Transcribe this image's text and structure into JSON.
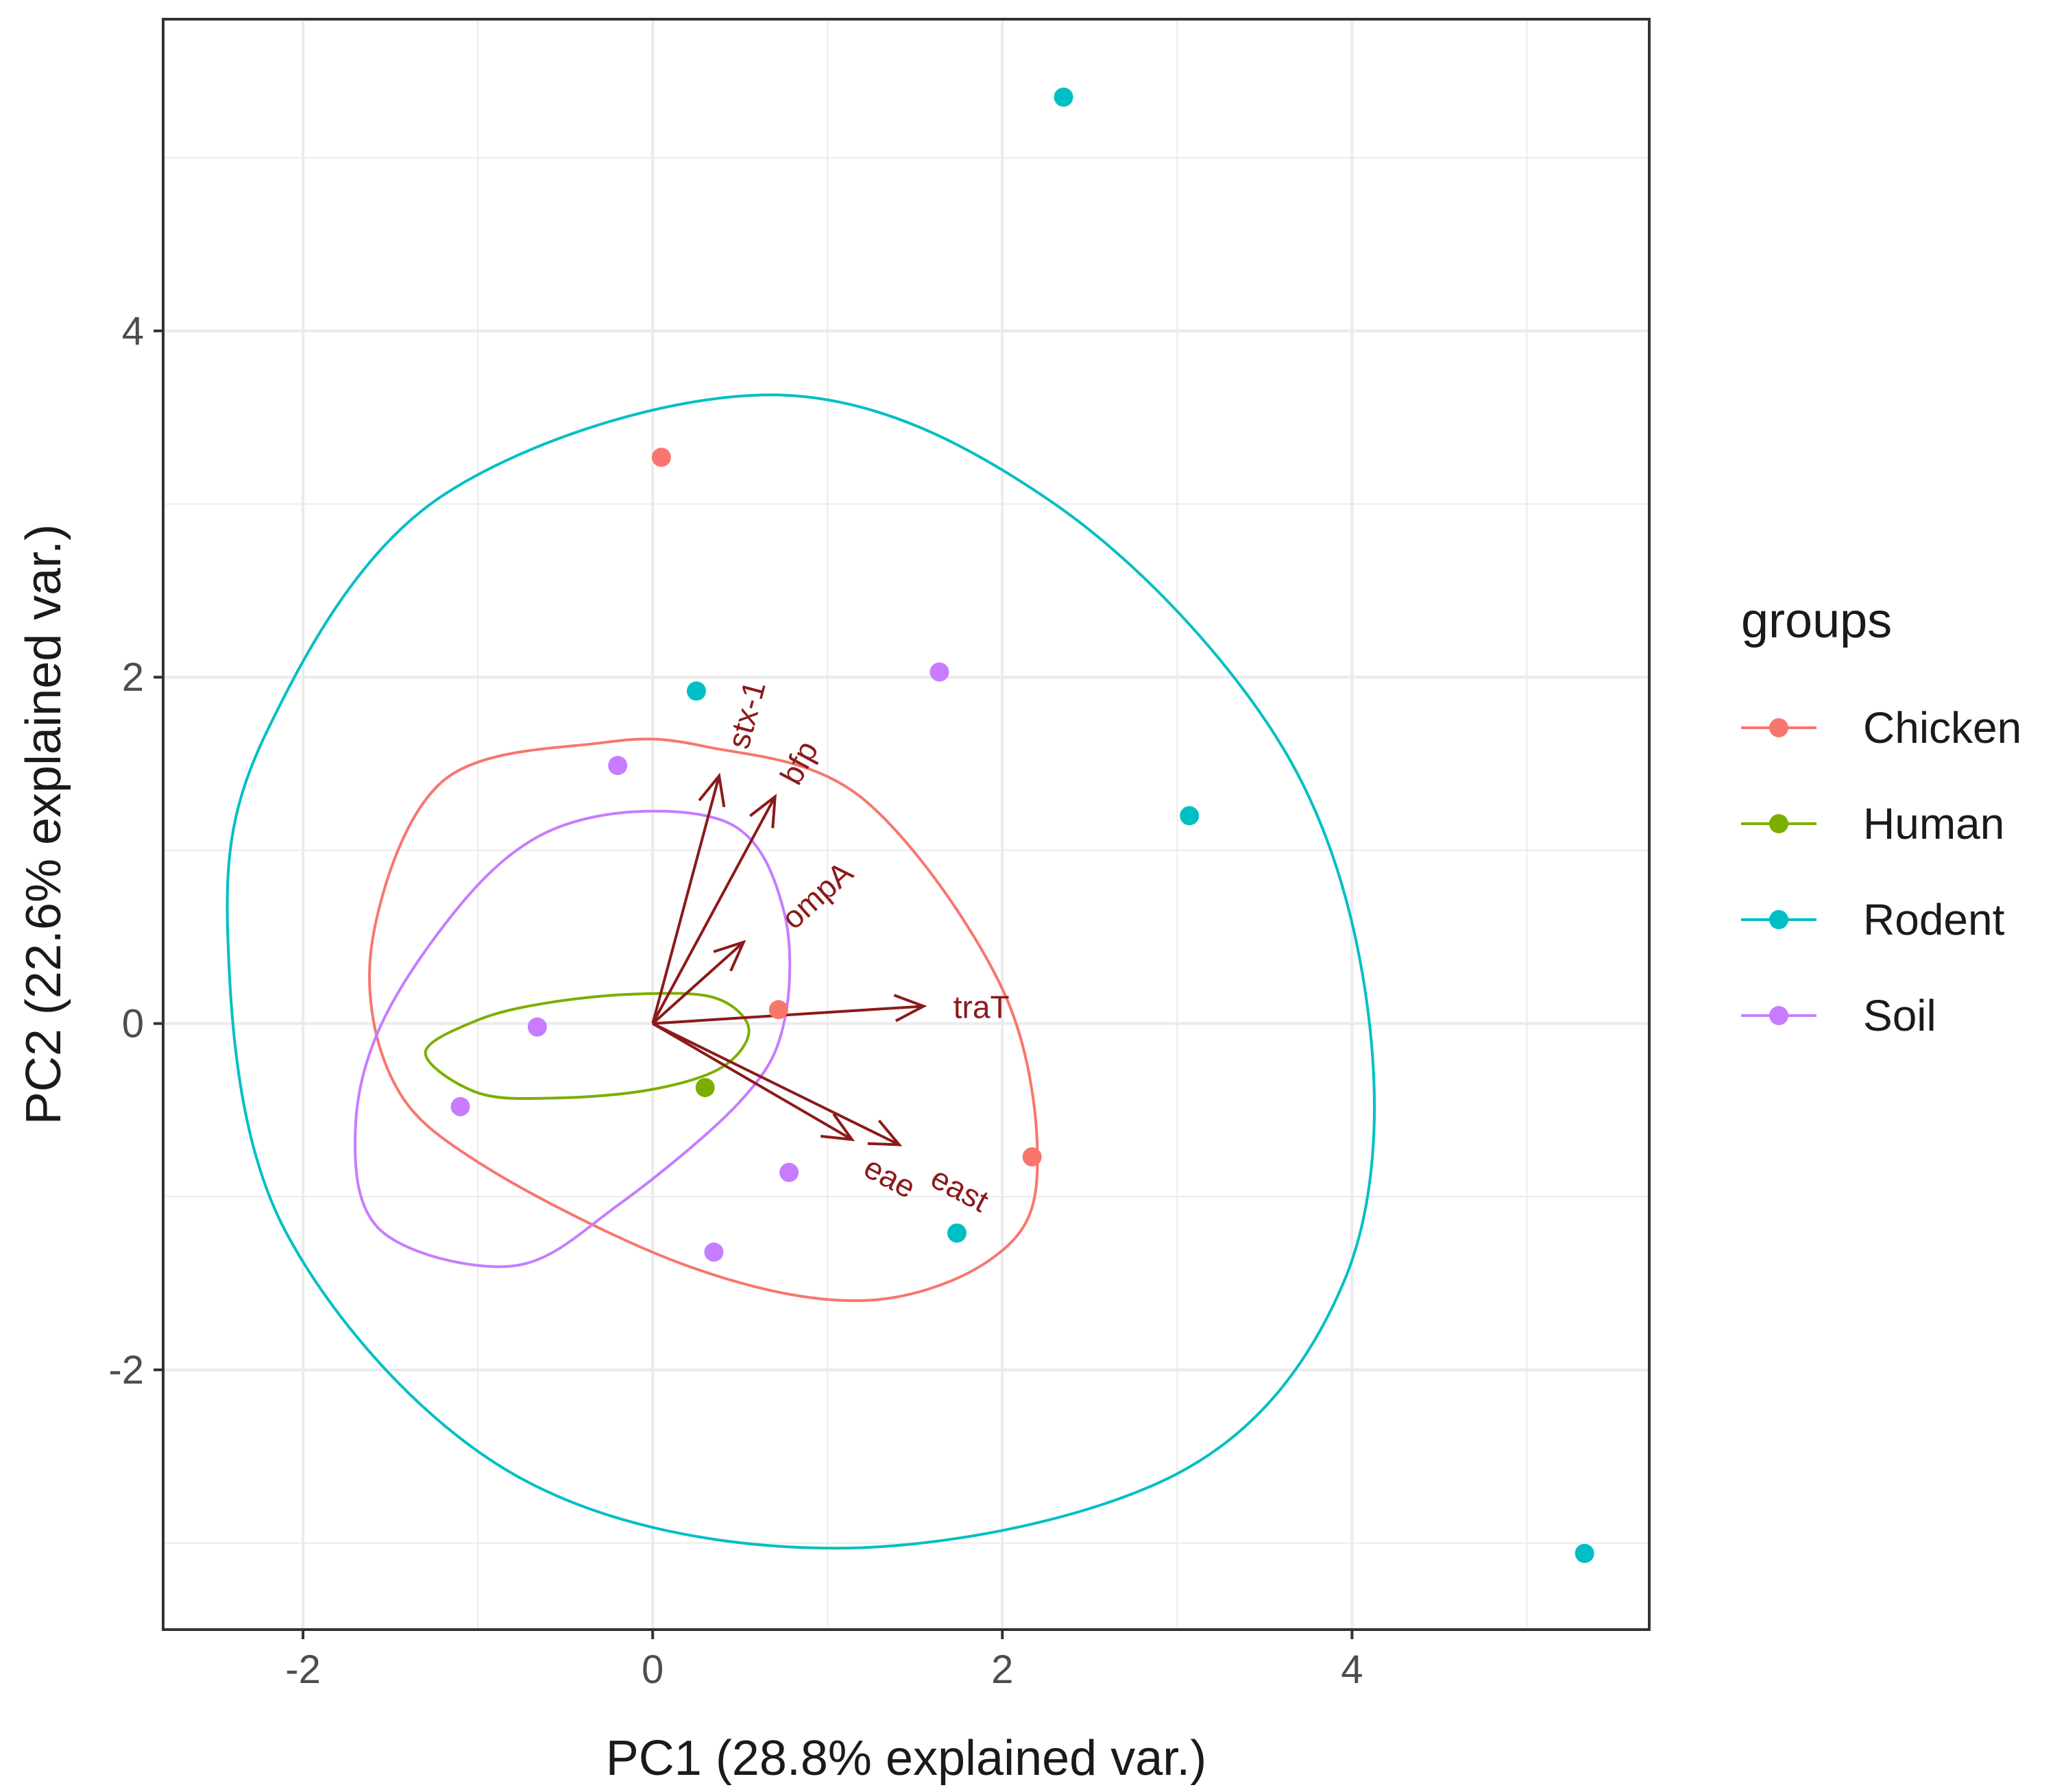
{
  "chart_data": {
    "type": "scatter",
    "subtype": "pca-biplot",
    "xlabel": "PC1 (28.8% explained var.)",
    "ylabel": "PC2 (22.6% explained var.)",
    "xlim": [
      -2.8,
      5.7
    ],
    "ylim": [
      -3.5,
      5.8
    ],
    "x_ticks": [
      -2,
      0,
      2,
      4
    ],
    "y_ticks": [
      -2,
      0,
      2,
      4
    ],
    "x_tick_labels": [
      "-2",
      "0",
      "2",
      "4"
    ],
    "y_tick_labels": [
      "-2",
      "0",
      "2",
      "4"
    ],
    "grid": true,
    "legend": {
      "title": "groups",
      "position": "right"
    },
    "series": [
      {
        "name": "Chicken",
        "color": "#F8766D",
        "points": [
          [
            0.05,
            3.27
          ],
          [
            0.72,
            0.08
          ],
          [
            2.17,
            -0.77
          ]
        ]
      },
      {
        "name": "Human",
        "color": "#7CAE00",
        "points": [
          [
            0.3,
            -0.37
          ]
        ]
      },
      {
        "name": "Rodent",
        "color": "#00BFC4",
        "points": [
          [
            2.35,
            5.35
          ],
          [
            0.25,
            1.92
          ],
          [
            3.07,
            1.2
          ],
          [
            1.74,
            -1.21
          ],
          [
            5.33,
            -3.06
          ]
        ]
      },
      {
        "name": "Soil",
        "color": "#C77CFF",
        "points": [
          [
            1.64,
            2.03
          ],
          [
            -0.2,
            1.49
          ],
          [
            -0.66,
            -0.02
          ],
          [
            -1.1,
            -0.48
          ],
          [
            0.78,
            -0.86
          ],
          [
            0.35,
            -1.32
          ]
        ]
      }
    ],
    "ellipses": [
      {
        "series": "Chicken",
        "color": "#F8766D",
        "path": [
          [
            -1.6,
            0.5
          ],
          [
            -1.2,
            1.4
          ],
          [
            -0.3,
            1.62
          ],
          [
            0.3,
            1.6
          ],
          [
            1.2,
            1.3
          ],
          [
            2.0,
            0.2
          ],
          [
            2.2,
            -0.85
          ],
          [
            1.95,
            -1.35
          ],
          [
            1.2,
            -1.6
          ],
          [
            0.2,
            -1.4
          ],
          [
            -1.0,
            -0.8
          ],
          [
            -1.5,
            -0.3
          ],
          [
            -1.6,
            0.5
          ]
        ]
      },
      {
        "series": "Human",
        "color": "#7CAE00",
        "path": [
          [
            -1.3,
            -0.17
          ],
          [
            -1.0,
            0.02
          ],
          [
            -0.6,
            0.12
          ],
          [
            -0.1,
            0.17
          ],
          [
            0.35,
            0.15
          ],
          [
            0.55,
            -0.03
          ],
          [
            0.4,
            -0.25
          ],
          [
            0.0,
            -0.38
          ],
          [
            -0.55,
            -0.43
          ],
          [
            -1.0,
            -0.4
          ],
          [
            -1.3,
            -0.17
          ]
        ]
      },
      {
        "series": "Rodent",
        "color": "#00BFC4",
        "path": [
          [
            -2.43,
            0.5
          ],
          [
            -2.2,
            1.7
          ],
          [
            -1.2,
            3.05
          ],
          [
            0.7,
            3.63
          ],
          [
            2.3,
            3.0
          ],
          [
            3.6,
            1.6
          ],
          [
            4.1,
            0.0
          ],
          [
            3.95,
            -1.5
          ],
          [
            3.0,
            -2.6
          ],
          [
            1.05,
            -3.03
          ],
          [
            -0.8,
            -2.6
          ],
          [
            -2.1,
            -1.2
          ],
          [
            -2.43,
            0.5
          ]
        ]
      },
      {
        "series": "Soil",
        "color": "#C77CFF",
        "path": [
          [
            -1.7,
            -0.6
          ],
          [
            -1.5,
            0.1
          ],
          [
            -0.9,
            0.9
          ],
          [
            -0.3,
            1.2
          ],
          [
            0.45,
            1.15
          ],
          [
            0.75,
            0.65
          ],
          [
            0.75,
            0.0
          ],
          [
            0.5,
            -0.45
          ],
          [
            -0.2,
            -1.05
          ],
          [
            -0.8,
            -1.4
          ],
          [
            -1.55,
            -1.2
          ],
          [
            -1.7,
            -0.6
          ]
        ]
      }
    ],
    "loadings": [
      {
        "label": "stx-1",
        "x": 0.38,
        "y": 1.43,
        "label_x": 0.55,
        "label_y": 1.78,
        "angle": -75
      },
      {
        "label": "bfp",
        "x": 0.7,
        "y": 1.31,
        "label_x": 0.85,
        "label_y": 1.5,
        "angle": -62
      },
      {
        "label": "ompA",
        "x": 0.52,
        "y": 0.47,
        "label_x": 0.95,
        "label_y": 0.73,
        "angle": -42
      },
      {
        "label": "traT",
        "x": 1.55,
        "y": 0.1,
        "label_x": 1.88,
        "label_y": 0.08,
        "angle": 0
      },
      {
        "label": "eae",
        "x": 1.14,
        "y": -0.67,
        "label_x": 1.35,
        "label_y": -0.9,
        "angle": 28
      },
      {
        "label": "east",
        "x": 1.41,
        "y": -0.7,
        "label_x": 1.75,
        "label_y": -0.97,
        "angle": 28
      }
    ],
    "arrow_color": "#8B1A1A"
  }
}
